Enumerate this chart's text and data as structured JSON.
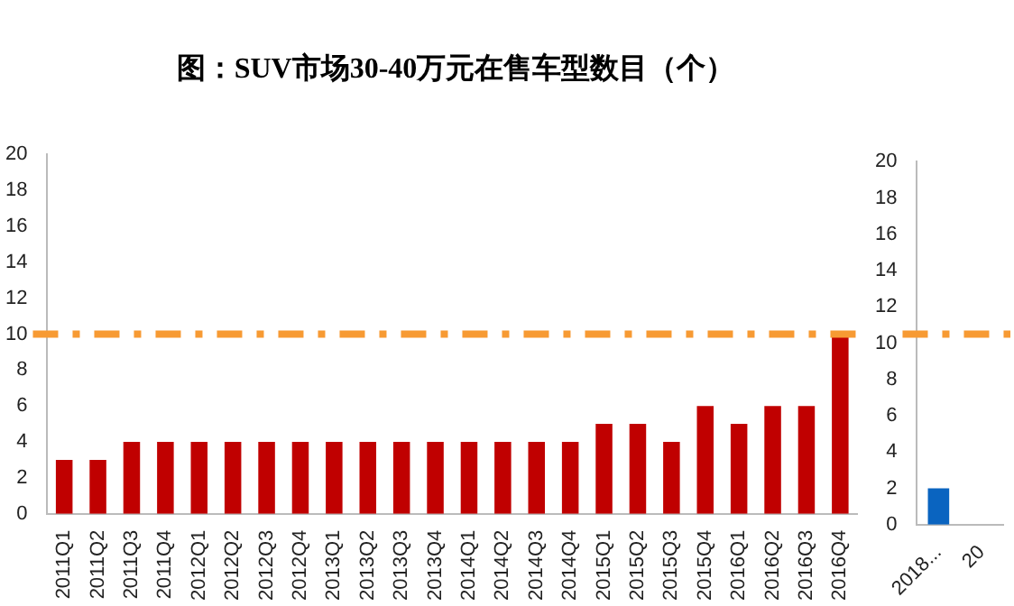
{
  "chart_data": [
    {
      "type": "bar",
      "title": "图：SUV市场30-40万元在售车型数目（个）",
      "categories": [
        "2011Q1",
        "2011Q2",
        "2011Q3",
        "2011Q4",
        "2012Q1",
        "2012Q2",
        "2012Q3",
        "2012Q4",
        "2013Q1",
        "2013Q2",
        "2013Q3",
        "2013Q4",
        "2014Q1",
        "2014Q2",
        "2014Q3",
        "2014Q4",
        "2015Q1",
        "2015Q2",
        "2015Q3",
        "2015Q4",
        "2016Q1",
        "2016Q2",
        "2016Q3",
        "2016Q4"
      ],
      "values": [
        3,
        3,
        4,
        4,
        4,
        4,
        4,
        4,
        4,
        4,
        4,
        4,
        4,
        4,
        4,
        4,
        5,
        5,
        4,
        6,
        5,
        6,
        6,
        10
      ],
      "color": "#c00000",
      "ylim": [
        0,
        20
      ],
      "yticks": [
        0,
        2,
        4,
        6,
        8,
        10,
        12,
        14,
        16,
        18,
        20
      ],
      "grid": false,
      "legend": false,
      "ref_lines": [
        {
          "axis": "y",
          "value": 10,
          "color": "#f79a33",
          "line_style": "dashed"
        }
      ]
    },
    {
      "type": "bar",
      "categories": [
        "2018...",
        "20"
      ],
      "values": [
        2,
        null
      ],
      "color": "#0a64c0",
      "ylim": [
        0,
        20
      ],
      "yticks": [
        0,
        2,
        4,
        6,
        8,
        10,
        12,
        14,
        16,
        18,
        20
      ],
      "grid": false,
      "legend": false,
      "ref_lines": [
        {
          "axis": "y",
          "value": 10.5,
          "color": "#f79a33",
          "line_style": "dashed"
        }
      ]
    }
  ]
}
